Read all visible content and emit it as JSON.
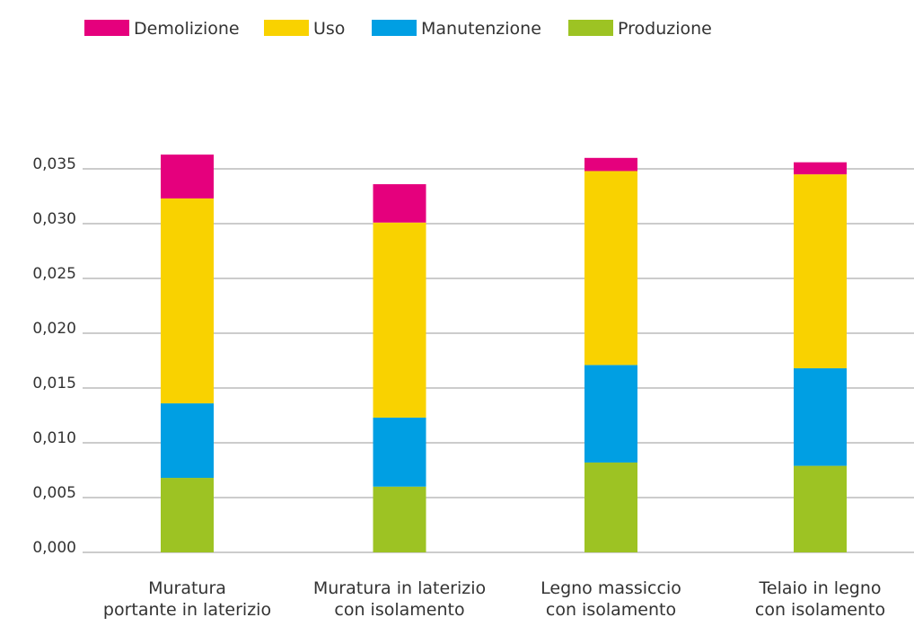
{
  "chart_data": {
    "type": "bar",
    "stacked": true,
    "categories": [
      [
        "Muratura",
        "portante in laterizio"
      ],
      [
        "Muratura in laterizio",
        "con isolamento"
      ],
      [
        "Legno massiccio",
        "con isolamento"
      ],
      [
        "Telaio in legno",
        "con isolamento"
      ]
    ],
    "series": [
      {
        "name": "Produzione",
        "color": "#9dc323",
        "values": [
          0.0068,
          0.006,
          0.0082,
          0.0079
        ]
      },
      {
        "name": "Manutenzione",
        "color": "#009fe3",
        "values": [
          0.0068,
          0.0063,
          0.0089,
          0.0089
        ]
      },
      {
        "name": "Uso",
        "color": "#f9d200",
        "values": [
          0.0187,
          0.0178,
          0.0177,
          0.0177
        ]
      },
      {
        "name": "Demolizione",
        "color": "#e5007d",
        "values": [
          0.004,
          0.0035,
          0.0012,
          0.0011
        ]
      }
    ],
    "legend_order": [
      "Demolizione",
      "Uso",
      "Manutenzione",
      "Produzione"
    ],
    "legend_position": "top-left",
    "ylim": [
      0,
      0.035
    ],
    "yticks": [
      "0,000",
      "0,005",
      "0,010",
      "0,015",
      "0,020",
      "0,025",
      "0,030",
      "0,035"
    ],
    "grid": true,
    "gridColor": "#9a9a9a"
  }
}
